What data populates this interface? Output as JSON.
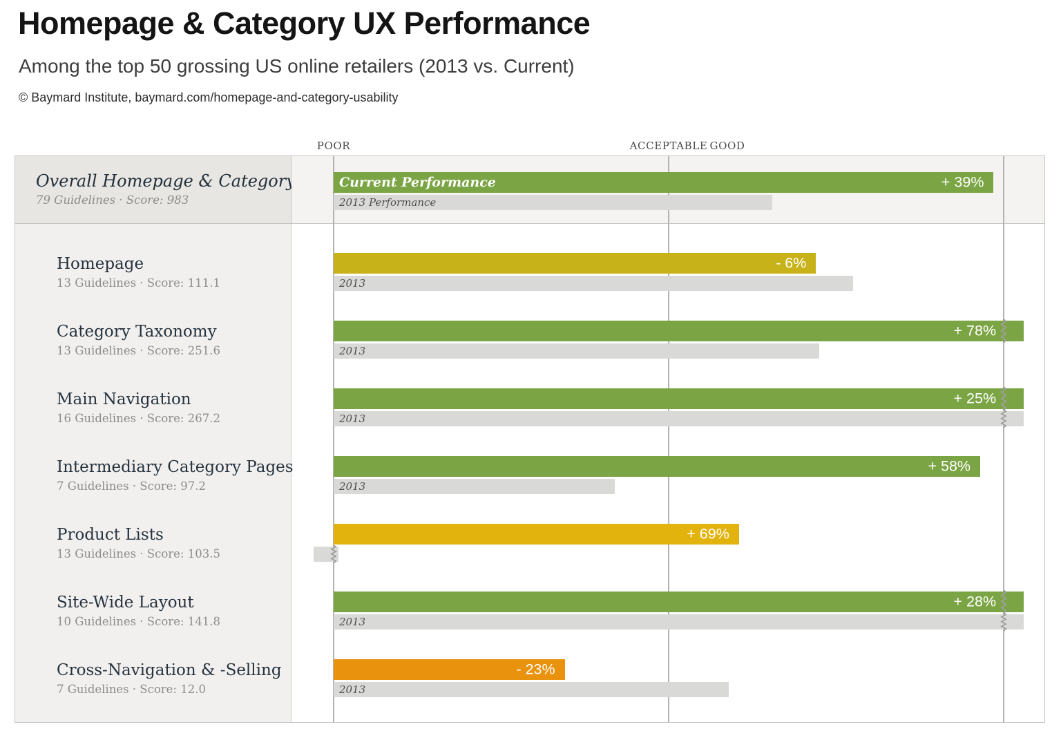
{
  "header": {
    "title": "Homepage & Category UX Performance",
    "subtitle": "Among the top 50 grossing US online retailers (2013 vs. Current)",
    "copyright": "© Baymard Institute, baymard.com/homepage-and-category-usability"
  },
  "colors": {
    "green": "#7ba544",
    "olive": "#c7b319",
    "gold": "#e3b30d",
    "orange": "#e8920e",
    "gray_2013": "#d9d9d7"
  },
  "chart_data": {
    "type": "bar",
    "orientation": "horizontal",
    "title": "Homepage & Category UX Performance",
    "subtitle": "Among the top 50 grossing US online retailers (2013 vs. Current)",
    "axis_ticks": [
      "POOR",
      "ACCEPTABLE",
      "GOOD"
    ],
    "axis_scale_note": "extent units along quality scale: 0 = POOR, 1 = ACCEPTABLE, 2 = GOOD; overflow flags mark wavy scale-break at axis edge",
    "series_labels": {
      "current": "Current Performance",
      "previous": "2013 Performance"
    },
    "rows": [
      {
        "label": "Overall Homepage & Category UX",
        "sublabel": "79 Guidelines · Score: 983",
        "change_label": "+ 39%",
        "current": {
          "extent": 1.97,
          "color": "green",
          "overflow_right": false,
          "bar_text": "Current Performance"
        },
        "previous": {
          "extent": 1.31,
          "overflow_right": false,
          "bar_text": "2013 Performance"
        }
      },
      {
        "label": "Homepage",
        "sublabel": "13 Guidelines · Score: 111.1",
        "change_label": "- 6%",
        "current": {
          "extent": 1.44,
          "color": "olive",
          "overflow_right": false
        },
        "previous": {
          "extent": 1.55,
          "overflow_right": false,
          "bar_text": "2013"
        }
      },
      {
        "label": "Category Taxonomy",
        "sublabel": "13 Guidelines · Score: 251.6",
        "change_label": "+ 78%",
        "current": {
          "extent": 2.06,
          "color": "green",
          "overflow_right": true
        },
        "previous": {
          "extent": 1.45,
          "overflow_right": false,
          "bar_text": "2013"
        }
      },
      {
        "label": "Main Navigation",
        "sublabel": "16 Guidelines · Score: 267.2",
        "change_label": "+ 25%",
        "current": {
          "extent": 2.06,
          "color": "green",
          "overflow_right": true
        },
        "previous": {
          "extent": 2.06,
          "overflow_right": true,
          "bar_text": "2013"
        }
      },
      {
        "label": "Intermediary Category Pages",
        "sublabel": "7 Guidelines · Score: 97.2",
        "change_label": "+ 58%",
        "current": {
          "extent": 1.93,
          "color": "green",
          "overflow_right": false
        },
        "previous": {
          "extent": 0.84,
          "overflow_right": false,
          "bar_text": "2013"
        }
      },
      {
        "label": "Product Lists",
        "sublabel": "13 Guidelines · Score: 103.5",
        "change_label": "+ 69%",
        "current": {
          "extent": 1.21,
          "color": "gold",
          "overflow_right": false
        },
        "previous": {
          "extent": 0.015,
          "start_extent": -0.06,
          "overflow_left": true,
          "bar_text": ""
        }
      },
      {
        "label": "Site-Wide Layout",
        "sublabel": "10 Guidelines · Score: 141.8",
        "change_label": "+ 28%",
        "current": {
          "extent": 2.06,
          "color": "green",
          "overflow_right": true
        },
        "previous": {
          "extent": 2.06,
          "overflow_right": true,
          "bar_text": "2013"
        }
      },
      {
        "label": "Cross-Navigation & -Selling",
        "sublabel": "7 Guidelines · Score: 12.0",
        "change_label": "- 23%",
        "current": {
          "extent": 0.69,
          "color": "orange",
          "overflow_right": false
        },
        "previous": {
          "extent": 1.18,
          "overflow_right": false,
          "bar_text": "2013"
        }
      }
    ]
  }
}
